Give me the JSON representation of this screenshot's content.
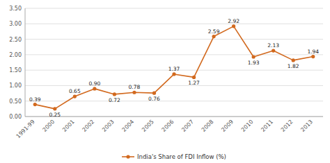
{
  "chart_data": {
    "type": "line",
    "categories": [
      "1991-99",
      "2000",
      "2001",
      "2002",
      "2003",
      "2004",
      "2005",
      "2006",
      "2007",
      "2008",
      "2009",
      "2010",
      "2011",
      "2012",
      "2013"
    ],
    "series": [
      {
        "name": "India's Share of FDI Inflow (%)",
        "color": "#D2691E",
        "marker": "circle",
        "values": [
          0.39,
          0.25,
          0.65,
          0.9,
          0.72,
          0.78,
          0.76,
          1.37,
          1.27,
          2.59,
          2.92,
          1.93,
          2.13,
          1.82,
          1.94
        ],
        "value_labels": [
          "0.39",
          "0.25",
          "0.65",
          "0.90",
          "0.72",
          "0.78",
          "0.76",
          "1.37",
          "1.27",
          "2.59",
          "2.92",
          "1.93",
          "2.13",
          "1.82",
          "1.94"
        ]
      }
    ],
    "ylim": [
      0.0,
      3.5
    ],
    "yticks": [
      {
        "value": 0.0,
        "label": "0.00"
      },
      {
        "value": 0.5,
        "label": "0.50"
      },
      {
        "value": 1.0,
        "label": "1.00"
      },
      {
        "value": 1.5,
        "label": "1.50"
      },
      {
        "value": 2.0,
        "label": "2.00"
      },
      {
        "value": 2.5,
        "label": "2.50"
      },
      {
        "value": 3.0,
        "label": "3.00"
      },
      {
        "value": 3.5,
        "label": "3.50"
      }
    ],
    "grid": true,
    "data_labels": true,
    "legend": "bottom"
  }
}
